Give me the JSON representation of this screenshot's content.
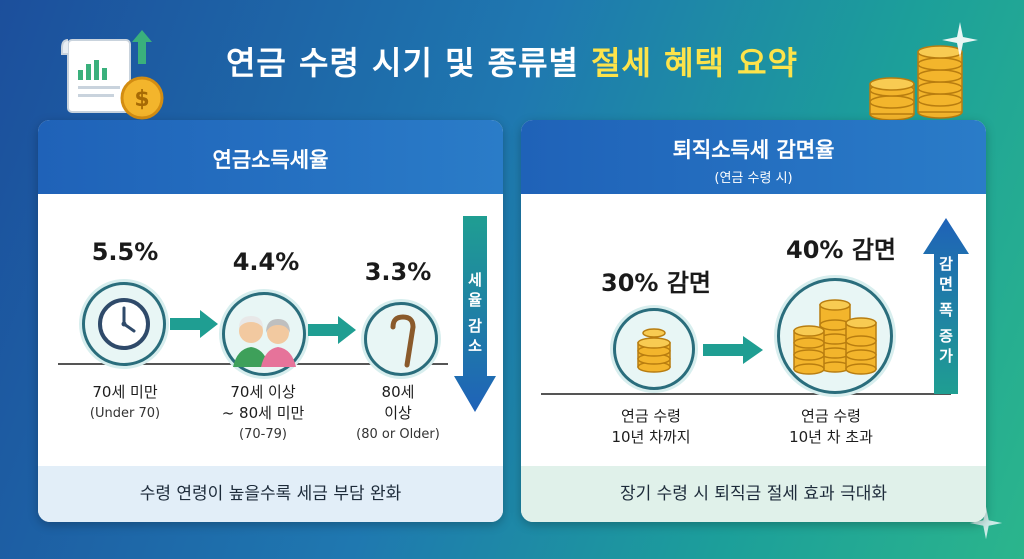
{
  "title": {
    "main": "연금 수령 시기 및 종류별 ",
    "highlight": "절세 혜택 요약"
  },
  "left_panel": {
    "title": "연금소득세율",
    "items": [
      {
        "rate": "5.5%",
        "label": "70세 미만",
        "en": "(Under 70)",
        "icon": "clock-icon"
      },
      {
        "rate": "4.4%",
        "label_line1": "70세 이상",
        "label_line2": "~ 80세 미만",
        "en": "(70-79)",
        "icon": "elderly-couple-icon"
      },
      {
        "rate": "3.3%",
        "label_line1": "80세",
        "label_line2": "이상",
        "en": "(80 or Older)",
        "icon": "cane-icon"
      }
    ],
    "side_arrow": {
      "chars": [
        "세",
        "율",
        "감",
        "소"
      ]
    },
    "footer": "수령 연령이 높을수록 세금 부담 완화"
  },
  "right_panel": {
    "title": "퇴직소득세 감면율",
    "subtitle": "(연금 수령 시)",
    "items": [
      {
        "rate": "30% 감면",
        "label_line1": "연금 수령",
        "label_line2": "10년 차까지",
        "icon": "small-coin-stack-icon"
      },
      {
        "rate": "40% 감면",
        "label_line1": "연금 수령",
        "label_line2": "10년 차 초과",
        "icon": "large-coin-stack-icon"
      }
    ],
    "side_arrow": {
      "chars": [
        "감",
        "면",
        "폭",
        "증",
        "가"
      ]
    },
    "footer": "장기 수령 시 퇴직금 절세 효과 극대화"
  },
  "colors": {
    "highlight": "#fde34a",
    "header_blue": "#1f62b8",
    "arrow_teal": "#1f9e92",
    "arrow_blue": "#1f62b8"
  }
}
